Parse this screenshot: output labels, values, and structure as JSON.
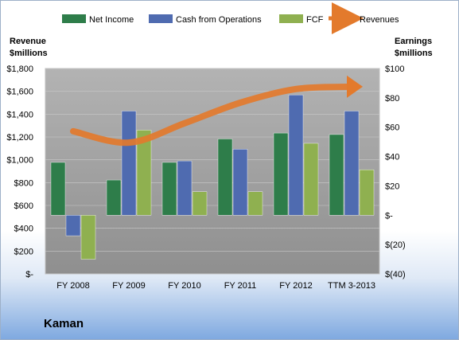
{
  "company": "Kaman",
  "colors": {
    "net_income": "#2e7d4a",
    "cash_from_operations": "#4f6bb0",
    "fcf": "#8fb050",
    "revenues": "#e37a2c",
    "plot_bg": "#a6a6a6"
  },
  "chart_data": {
    "type": "bar",
    "categories": [
      "FY 2008",
      "FY 2009",
      "FY 2010",
      "FY 2011",
      "FY 2012",
      "TTM 3-2013"
    ],
    "series": [
      {
        "name": "Net Income",
        "axis": "right",
        "type": "bar",
        "values": [
          36,
          24,
          36,
          52,
          56,
          55
        ]
      },
      {
        "name": "Cash from Operations",
        "axis": "right",
        "type": "bar",
        "values": [
          -14,
          71,
          37,
          45,
          82,
          71
        ]
      },
      {
        "name": "FCF",
        "axis": "right",
        "type": "bar",
        "values": [
          -30,
          58,
          16,
          16,
          49,
          31
        ]
      },
      {
        "name": "Revenues",
        "axis": "left",
        "type": "line",
        "values": [
          1250,
          1150,
          1320,
          1500,
          1620,
          1640
        ]
      }
    ],
    "left_axis": {
      "title_lines": [
        "Revenue",
        "$millions"
      ],
      "ylim": [
        0,
        1800
      ],
      "ticks": [
        0,
        200,
        400,
        600,
        800,
        1000,
        1200,
        1400,
        1600,
        1800
      ],
      "tick_labels": [
        "$-",
        "$200",
        "$400",
        "$600",
        "$800",
        "$1,000",
        "$1,200",
        "$1,400",
        "$1,600",
        "$1,800"
      ]
    },
    "right_axis": {
      "title_lines": [
        "Earnings",
        "$millions"
      ],
      "ylim": [
        -40,
        100
      ],
      "ticks": [
        -40,
        -20,
        0,
        20,
        40,
        60,
        80,
        100
      ],
      "tick_labels": [
        "$(40)",
        "$(20)",
        "$-",
        "$20",
        "$40",
        "$60",
        "$80",
        "$100"
      ]
    },
    "legend": {
      "position": "top",
      "entries": [
        "Net Income",
        "Cash from Operations",
        "FCF",
        "Revenues"
      ]
    }
  }
}
